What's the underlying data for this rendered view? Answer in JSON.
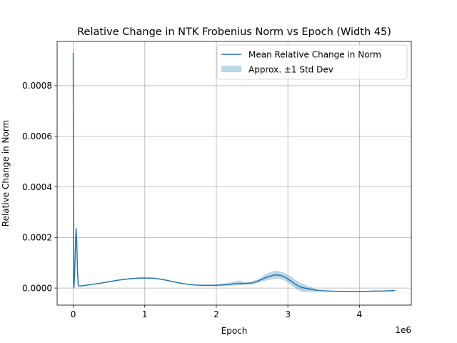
{
  "chart_data": {
    "type": "line",
    "title": "Relative Change in NTK Frobenius Norm vs Epoch (Width 45)",
    "xlabel": "Epoch",
    "ylabel": "Relative Change in Norm",
    "x_offset_text": "1e6",
    "xlim": [
      -225000,
      4725000
    ],
    "ylim": [
      -6.75e-05,
      0.000975
    ],
    "x_ticks": [
      0,
      1000000,
      2000000,
      3000000,
      4000000
    ],
    "x_tick_labels": [
      "0",
      "1",
      "2",
      "3",
      "4"
    ],
    "y_ticks": [
      0,
      0.0002,
      0.0004,
      0.0006,
      0.0008
    ],
    "y_tick_labels": [
      "0.0000",
      "0.0002",
      "0.0004",
      "0.0006",
      "0.0008"
    ],
    "grid": true,
    "legend_position": "top-right",
    "colors": {
      "line": "#1f77b4",
      "band": "#1f77b4"
    },
    "series": [
      {
        "name": "Mean Relative Change in Norm",
        "kind": "line",
        "x": [
          0,
          5000,
          10000,
          20000,
          30000,
          40000,
          50000,
          60000,
          70000,
          80000,
          100000,
          150000,
          200000,
          300000,
          400000,
          500000,
          600000,
          700000,
          800000,
          900000,
          1000000,
          1100000,
          1200000,
          1300000,
          1400000,
          1500000,
          1600000,
          1700000,
          1800000,
          1900000,
          2000000,
          2100000,
          2200000,
          2250000,
          2300000,
          2350000,
          2400000,
          2500000,
          2600000,
          2700000,
          2800000,
          2850000,
          2900000,
          2950000,
          3000000,
          3050000,
          3100000,
          3150000,
          3200000,
          3300000,
          3400000,
          3500000,
          3600000,
          3700000,
          3800000,
          3900000,
          4000000,
          4100000,
          4200000,
          4300000,
          4400000,
          4500000
        ],
        "y": [
          0.00093,
          2e-05,
          2e-06,
          6e-05,
          0.00016,
          0.000235,
          0.00018,
          6e-05,
          1.2e-05,
          8e-06,
          8e-06,
          1e-05,
          1.2e-05,
          1.6e-05,
          2e-05,
          2.5e-05,
          3e-05,
          3.4e-05,
          3.7e-05,
          3.9e-05,
          4e-05,
          3.9e-05,
          3.6e-05,
          3.1e-05,
          2.5e-05,
          1.9e-05,
          1.5e-05,
          1.2e-05,
          1.1e-05,
          1.1e-05,
          1.1e-05,
          1.3e-05,
          1.5e-05,
          1.7e-05,
          1.8e-05,
          1.8e-05,
          1.8e-05,
          2e-05,
          3e-05,
          4.2e-05,
          5.1e-05,
          5.2e-05,
          5e-05,
          4.4e-05,
          3.6e-05,
          2.6e-05,
          1.6e-05,
          8e-06,
          2e-06,
          -4e-06,
          -9e-06,
          -1.1e-05,
          -1.2e-05,
          -1.3e-05,
          -1.3e-05,
          -1.3e-05,
          -1.3e-05,
          -1.3e-05,
          -1.2e-05,
          -1.2e-05,
          -1.1e-05,
          -1e-05
        ]
      },
      {
        "name": "Approx. ±1 Std Dev",
        "kind": "band",
        "x": [
          1900000,
          2000000,
          2100000,
          2200000,
          2250000,
          2300000,
          2350000,
          2400000,
          2500000,
          2600000,
          2700000,
          2800000,
          2850000,
          2900000,
          2950000,
          3000000,
          3050000,
          3100000,
          3150000,
          3200000,
          3300000,
          3400000,
          3500000
        ],
        "lower": [
          9e-06,
          8e-06,
          8e-06,
          9e-06,
          1e-05,
          1.1e-05,
          1.2e-05,
          1.3e-05,
          1.5e-05,
          2.2e-05,
          3e-05,
          3.6e-05,
          3.7e-05,
          3.5e-05,
          3e-05,
          2.2e-05,
          1e-05,
          1e-06,
          -9e-06,
          -1.5e-05,
          -1.7e-05,
          -1.4e-05,
          -1.2e-05
        ],
        "upper": [
          1.3e-05,
          1.4e-05,
          1.8e-05,
          2.2e-05,
          2.6e-05,
          3e-05,
          2.8e-05,
          2.4e-05,
          2.5e-05,
          3.8e-05,
          5.6e-05,
          6.8e-05,
          6.8e-05,
          6.5e-05,
          6e-05,
          5.2e-05,
          4.5e-05,
          3.4e-05,
          2.4e-05,
          1.8e-05,
          6e-06,
          -4e-06,
          -1.2e-05
        ]
      }
    ]
  }
}
